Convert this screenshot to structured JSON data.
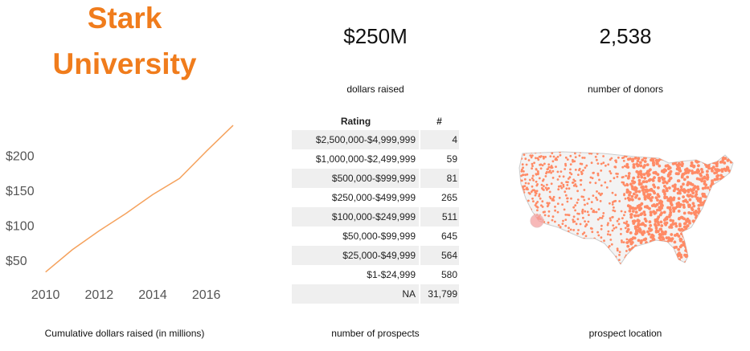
{
  "title_line1": "Stark",
  "title_line2": "University",
  "kpis": {
    "dollars_value": "$250M",
    "dollars_label": "dollars raised",
    "donors_value": "2,538",
    "donors_label": "number of donors"
  },
  "captions": {
    "line_chart": "Cumulative dollars raised (in millions)",
    "table": "number of prospects",
    "map": "prospect location"
  },
  "chart_data": {
    "type": "line",
    "x": [
      2010,
      2011,
      2012,
      2013,
      2014,
      2015,
      2016,
      2017
    ],
    "values": [
      33,
      65,
      92,
      117,
      144,
      167,
      206,
      243
    ],
    "xticks": [
      "2010",
      "2012",
      "2014",
      "2016"
    ],
    "yticks": [
      "$50",
      "$100",
      "$150",
      "$200"
    ],
    "ytick_values": [
      50,
      100,
      150,
      200
    ],
    "xlim": [
      2009.5,
      2017.3
    ],
    "ylim": [
      20,
      250
    ],
    "line_color": "#f5a25d",
    "grid": false
  },
  "table": {
    "headers": {
      "rating": "Rating",
      "count": "#"
    },
    "rows": [
      {
        "rating": "$2,500,000-$4,999,999",
        "count": "4"
      },
      {
        "rating": "$1,000,000-$2,499,999",
        "count": "59"
      },
      {
        "rating": "$500,000-$999,999",
        "count": "81"
      },
      {
        "rating": "$250,000-$499,999",
        "count": "265"
      },
      {
        "rating": "$100,000-$249,999",
        "count": "511"
      },
      {
        "rating": "$50,000-$99,999",
        "count": "645"
      },
      {
        "rating": "$25,000-$49,999",
        "count": "564"
      },
      {
        "rating": "$1-$24,999",
        "count": "580"
      },
      {
        "rating": "NA",
        "count": "31,799"
      }
    ]
  },
  "map": {
    "fill_color": "#ff8a65",
    "highlight_color": "#f4a0a0"
  }
}
